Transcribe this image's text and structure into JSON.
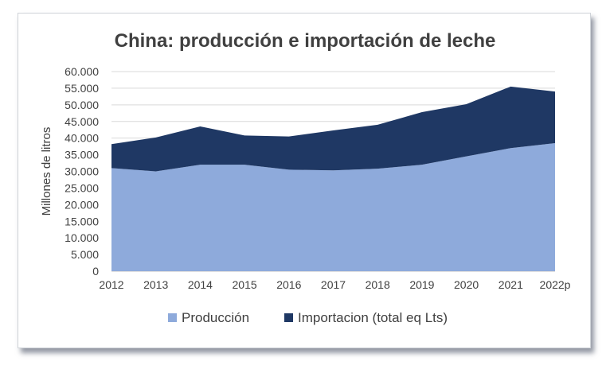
{
  "chart_data": {
    "type": "area",
    "stacked": true,
    "title": "China: producción e importación de leche",
    "xlabel": "",
    "ylabel": "Millones de litros",
    "categories": [
      "2012",
      "2013",
      "2014",
      "2015",
      "2016",
      "2017",
      "2018",
      "2019",
      "2020",
      "2021",
      "2022p"
    ],
    "ylim": [
      0,
      60000
    ],
    "yticks": [
      "0",
      "5.000",
      "10.000",
      "15.000",
      "20.000",
      "25.000",
      "30.000",
      "35.000",
      "40.000",
      "45.000",
      "50.000",
      "55.000",
      "60.000"
    ],
    "ytick_values": [
      0,
      5000,
      10000,
      15000,
      20000,
      25000,
      30000,
      35000,
      40000,
      45000,
      50000,
      55000,
      60000
    ],
    "grid": true,
    "legend_position": "bottom",
    "series": [
      {
        "name": "Producción",
        "color": "#8eaadb",
        "values": [
          31000,
          30000,
          32000,
          32000,
          30500,
          30300,
          30800,
          32000,
          34500,
          37000,
          38500
        ]
      },
      {
        "name": "Importacion (total eq Lts)",
        "color": "#1f3864",
        "values": [
          7200,
          10200,
          11500,
          8800,
          10000,
          12000,
          13200,
          15800,
          15700,
          18500,
          15500
        ]
      }
    ]
  }
}
